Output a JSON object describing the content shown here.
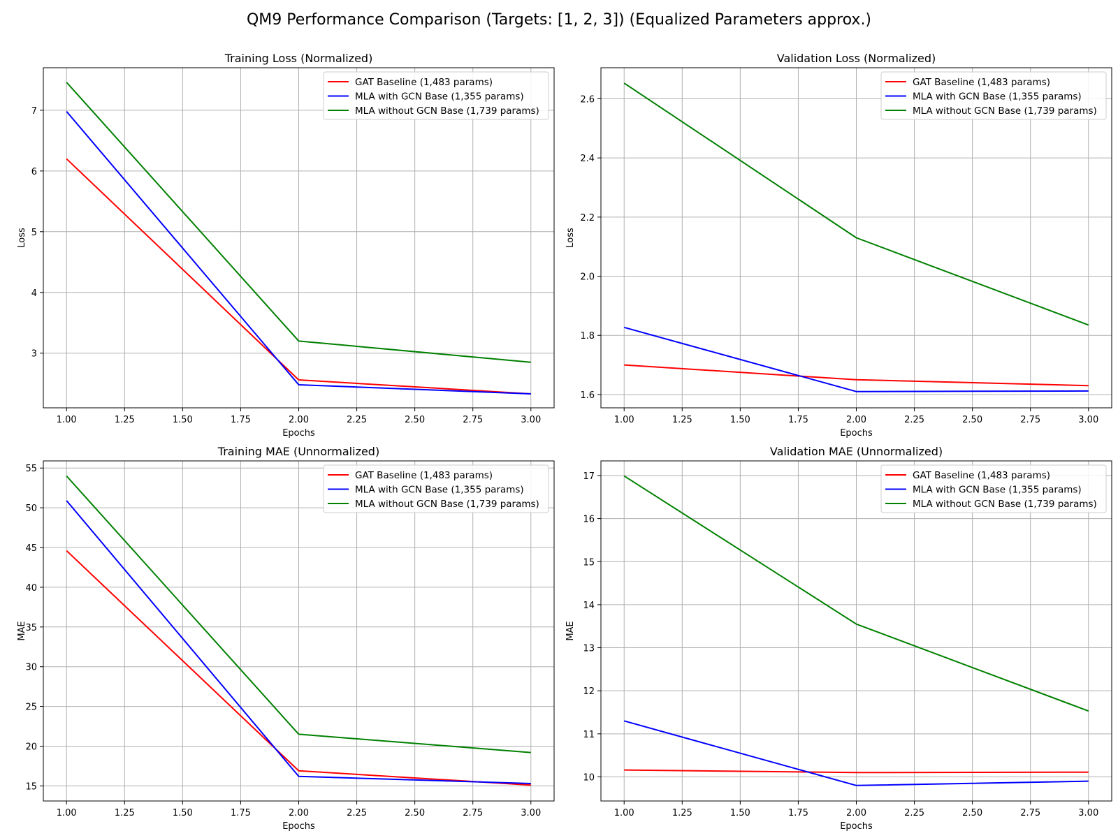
{
  "figure": {
    "suptitle": "QM9 Performance Comparison (Targets: [1, 2, 3]) (Equalized Parameters approx.)"
  },
  "colors": {
    "gat": "#ff0000",
    "mla_gcn": "#0000ff",
    "mla_no_gcn": "#008000",
    "grid": "#b0b0b0"
  },
  "chart_data": [
    {
      "type": "line",
      "title": "Training Loss (Normalized)",
      "xlabel": "Epochs",
      "ylabel": "Loss",
      "x": [
        1,
        2,
        3
      ],
      "xlim": [
        0.9,
        3.1
      ],
      "ylim": [
        2.1,
        7.7
      ],
      "xticks": [
        "1.00",
        "1.25",
        "1.50",
        "1.75",
        "2.00",
        "2.25",
        "2.50",
        "2.75",
        "3.00"
      ],
      "yticks": [
        "3",
        "4",
        "5",
        "6",
        "7"
      ],
      "grid": true,
      "legend": "top-right",
      "series": [
        {
          "name": "GAT Baseline (1,483 params)",
          "color": "#ff0000",
          "values": [
            6.2,
            2.56,
            2.33
          ]
        },
        {
          "name": "MLA with GCN Base (1,355 params)",
          "color": "#0000ff",
          "values": [
            6.98,
            2.48,
            2.33
          ]
        },
        {
          "name": "MLA without GCN Base (1,739 params)",
          "color": "#008000",
          "values": [
            7.46,
            3.2,
            2.85
          ]
        }
      ]
    },
    {
      "type": "line",
      "title": "Validation Loss (Normalized)",
      "xlabel": "Epochs",
      "ylabel": "Loss",
      "x": [
        1,
        2,
        3
      ],
      "xlim": [
        0.9,
        3.1
      ],
      "ylim": [
        1.555,
        2.705
      ],
      "xticks": [
        "1.00",
        "1.25",
        "1.50",
        "1.75",
        "2.00",
        "2.25",
        "2.50",
        "2.75",
        "3.00"
      ],
      "yticks": [
        "1.6",
        "1.8",
        "2.0",
        "2.2",
        "2.4",
        "2.6"
      ],
      "grid": true,
      "legend": "top-right",
      "series": [
        {
          "name": "GAT Baseline (1,483 params)",
          "color": "#ff0000",
          "values": [
            1.7,
            1.65,
            1.63
          ]
        },
        {
          "name": "MLA with GCN Base (1,355 params)",
          "color": "#0000ff",
          "values": [
            1.827,
            1.61,
            1.612
          ]
        },
        {
          "name": "MLA without GCN Base (1,739 params)",
          "color": "#008000",
          "values": [
            2.653,
            2.13,
            1.835
          ]
        }
      ]
    },
    {
      "type": "line",
      "title": "Training MAE (Unnormalized)",
      "xlabel": "Epochs",
      "ylabel": "MAE",
      "x": [
        1,
        2,
        3
      ],
      "xlim": [
        0.9,
        3.1
      ],
      "ylim": [
        13.1,
        55.9
      ],
      "xticks": [
        "1.00",
        "1.25",
        "1.50",
        "1.75",
        "2.00",
        "2.25",
        "2.50",
        "2.75",
        "3.00"
      ],
      "yticks": [
        "15",
        "20",
        "25",
        "30",
        "35",
        "40",
        "45",
        "50",
        "55"
      ],
      "grid": true,
      "legend": "top-right",
      "series": [
        {
          "name": "GAT Baseline (1,483 params)",
          "color": "#ff0000",
          "values": [
            44.6,
            16.9,
            15.1
          ]
        },
        {
          "name": "MLA with GCN Base (1,355 params)",
          "color": "#0000ff",
          "values": [
            50.9,
            16.2,
            15.3
          ]
        },
        {
          "name": "MLA without GCN Base (1,739 params)",
          "color": "#008000",
          "values": [
            54.0,
            21.5,
            19.2
          ]
        }
      ]
    },
    {
      "type": "line",
      "title": "Validation MAE (Unnormalized)",
      "xlabel": "Epochs",
      "ylabel": "MAE",
      "x": [
        1,
        2,
        3
      ],
      "xlim": [
        0.9,
        3.1
      ],
      "ylim": [
        9.44,
        17.34
      ],
      "xticks": [
        "1.00",
        "1.25",
        "1.50",
        "1.75",
        "2.00",
        "2.25",
        "2.50",
        "2.75",
        "3.00"
      ],
      "yticks": [
        "10",
        "11",
        "12",
        "13",
        "14",
        "15",
        "16",
        "17"
      ],
      "grid": true,
      "legend": "top-right",
      "series": [
        {
          "name": "GAT Baseline (1,483 params)",
          "color": "#ff0000",
          "values": [
            10.16,
            10.1,
            10.11
          ]
        },
        {
          "name": "MLA with GCN Base (1,355 params)",
          "color": "#0000ff",
          "values": [
            11.3,
            9.8,
            9.9
          ]
        },
        {
          "name": "MLA without GCN Base (1,739 params)",
          "color": "#008000",
          "values": [
            16.99,
            13.55,
            11.53
          ]
        }
      ]
    }
  ]
}
